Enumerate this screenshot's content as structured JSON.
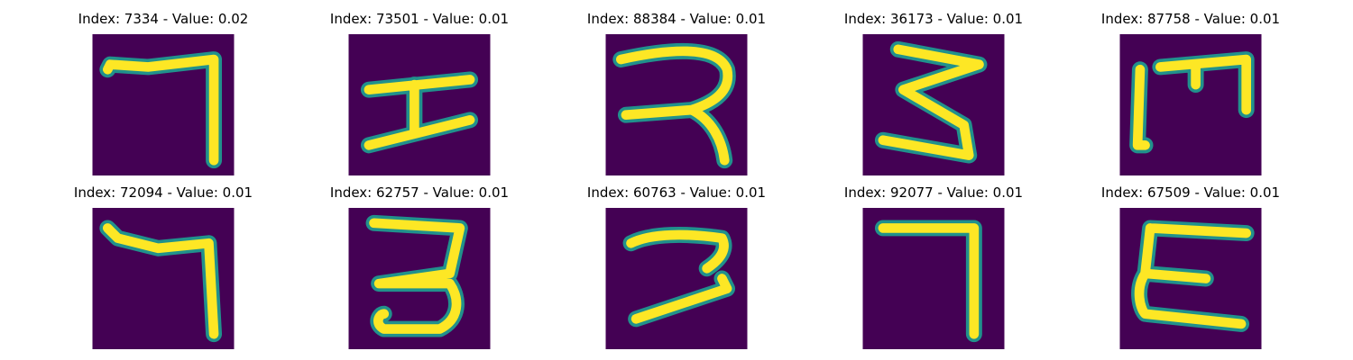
{
  "colors": {
    "background": "#440154",
    "stroke_core": "#fde725",
    "stroke_edge": "#21918c"
  },
  "tiles": [
    {
      "title": "Index: 7334 - Value: 0.02",
      "glyph": "seven-shape"
    },
    {
      "title": "Index: 73501 - Value: 0.01",
      "glyph": "h-shape"
    },
    {
      "title": "Index: 88384 - Value: 0.01",
      "glyph": "r-shape"
    },
    {
      "title": "Index: 36173 - Value: 0.01",
      "glyph": "three-z-shape"
    },
    {
      "title": "Index: 87758 - Value: 0.01",
      "glyph": "m-shape"
    },
    {
      "title": "Index: 72094 - Value: 0.01",
      "glyph": "seven-shape"
    },
    {
      "title": "Index: 62757 - Value: 0.01",
      "glyph": "three-shape"
    },
    {
      "title": "Index: 60763 - Value: 0.01",
      "glyph": "reversed-c-shape"
    },
    {
      "title": "Index: 92077 - Value: 0.01",
      "glyph": "seven-shape"
    },
    {
      "title": "Index: 67509 - Value: 0.01",
      "glyph": "e-shape"
    }
  ]
}
